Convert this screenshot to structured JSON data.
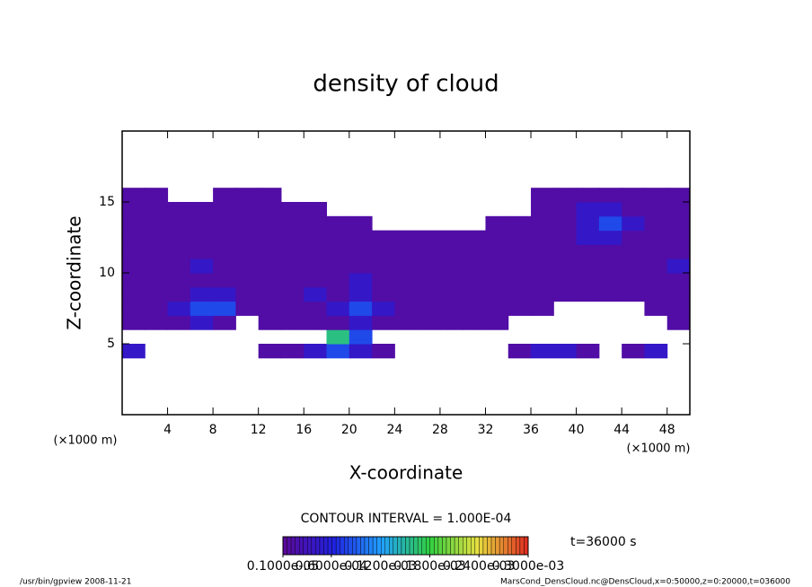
{
  "chart_data": {
    "type": "contour",
    "title": "density of cloud",
    "x_label": "X-coordinate",
    "y_label": "Z-coordinate",
    "x_unit": "(×1000 m)",
    "y_unit": "(×1000 m)",
    "xlim": [
      0,
      50
    ],
    "ylim": [
      0,
      20
    ],
    "xticks": [
      4,
      8,
      12,
      16,
      20,
      24,
      28,
      32,
      36,
      40,
      44,
      48
    ],
    "yticks": [
      5,
      10,
      15
    ],
    "x": [
      1,
      3,
      5,
      7,
      9,
      11,
      13,
      15,
      17,
      19,
      21,
      23,
      25,
      27,
      29,
      31,
      33,
      35,
      37,
      39,
      41,
      43,
      45,
      47,
      49
    ],
    "y": [
      4.5,
      5.5,
      6.5,
      7.5,
      8.5,
      9.5,
      10.5,
      11.5,
      12.5,
      13.5,
      14.5,
      15.5
    ],
    "z": [
      [
        4e-05,
        null,
        null,
        null,
        null,
        null,
        1e-05,
        1e-05,
        4e-05,
        8e-05,
        4e-05,
        1e-05,
        null,
        null,
        null,
        null,
        null,
        1e-05,
        4e-05,
        4e-05,
        1e-05,
        null,
        1e-05,
        4e-05,
        null
      ],
      [
        null,
        null,
        null,
        null,
        null,
        null,
        null,
        null,
        null,
        0.00016,
        8e-05,
        null,
        null,
        null,
        null,
        null,
        null,
        null,
        null,
        null,
        null,
        null,
        null,
        null,
        null
      ],
      [
        1e-05,
        1e-05,
        1e-05,
        4e-05,
        1e-05,
        null,
        1e-05,
        1e-05,
        1e-05,
        1e-05,
        4e-05,
        1e-05,
        1e-05,
        1e-05,
        1e-05,
        1e-05,
        1e-05,
        null,
        null,
        null,
        null,
        null,
        null,
        null,
        1e-05
      ],
      [
        1e-05,
        1e-05,
        4e-05,
        8e-05,
        8e-05,
        1e-05,
        1e-05,
        1e-05,
        1e-05,
        4e-05,
        8e-05,
        4e-05,
        1e-05,
        1e-05,
        1e-05,
        1e-05,
        1e-05,
        1e-05,
        1e-05,
        null,
        null,
        null,
        null,
        1e-05,
        1e-05
      ],
      [
        1e-05,
        1e-05,
        1e-05,
        4e-05,
        4e-05,
        1e-05,
        1e-05,
        1e-05,
        4e-05,
        1e-05,
        4e-05,
        1e-05,
        1e-05,
        1e-05,
        1e-05,
        1e-05,
        1e-05,
        1e-05,
        1e-05,
        1e-05,
        1e-05,
        1e-05,
        1e-05,
        1e-05,
        1e-05
      ],
      [
        1e-05,
        1e-05,
        1e-05,
        1e-05,
        1e-05,
        1e-05,
        1e-05,
        1e-05,
        1e-05,
        1e-05,
        4e-05,
        1e-05,
        1e-05,
        1e-05,
        1e-05,
        1e-05,
        1e-05,
        1e-05,
        1e-05,
        1e-05,
        1e-05,
        1e-05,
        1e-05,
        1e-05,
        1e-05
      ],
      [
        1e-05,
        1e-05,
        1e-05,
        4e-05,
        1e-05,
        1e-05,
        1e-05,
        1e-05,
        1e-05,
        1e-05,
        1e-05,
        1e-05,
        1e-05,
        1e-05,
        1e-05,
        1e-05,
        1e-05,
        1e-05,
        1e-05,
        1e-05,
        1e-05,
        1e-05,
        1e-05,
        1e-05,
        4e-05
      ],
      [
        1e-05,
        1e-05,
        1e-05,
        1e-05,
        1e-05,
        1e-05,
        1e-05,
        1e-05,
        1e-05,
        1e-05,
        1e-05,
        1e-05,
        1e-05,
        1e-05,
        1e-05,
        1e-05,
        1e-05,
        1e-05,
        1e-05,
        1e-05,
        1e-05,
        1e-05,
        1e-05,
        1e-05,
        1e-05
      ],
      [
        1e-05,
        1e-05,
        1e-05,
        1e-05,
        1e-05,
        1e-05,
        1e-05,
        1e-05,
        1e-05,
        1e-05,
        1e-05,
        1e-05,
        1e-05,
        1e-05,
        1e-05,
        1e-05,
        1e-05,
        1e-05,
        1e-05,
        1e-05,
        4e-05,
        4e-05,
        1e-05,
        1e-05,
        1e-05
      ],
      [
        1e-05,
        1e-05,
        1e-05,
        1e-05,
        1e-05,
        1e-05,
        1e-05,
        1e-05,
        1e-05,
        1e-05,
        1e-05,
        null,
        null,
        null,
        null,
        null,
        1e-05,
        1e-05,
        1e-05,
        1e-05,
        4e-05,
        8e-05,
        4e-05,
        1e-05,
        1e-05
      ],
      [
        1e-05,
        1e-05,
        1e-05,
        1e-05,
        1e-05,
        1e-05,
        1e-05,
        1e-05,
        1e-05,
        null,
        null,
        null,
        null,
        null,
        null,
        null,
        null,
        null,
        1e-05,
        1e-05,
        4e-05,
        4e-05,
        1e-05,
        1e-05,
        1e-05
      ],
      [
        1e-05,
        1e-05,
        null,
        null,
        1e-05,
        1e-05,
        1e-05,
        null,
        null,
        null,
        null,
        null,
        null,
        null,
        null,
        null,
        null,
        null,
        1e-05,
        1e-05,
        1e-05,
        1e-05,
        1e-05,
        1e-05,
        1e-05
      ]
    ],
    "clim": [
      1e-06,
      0.0003
    ],
    "colormap": [
      "#5a0a9a",
      "#2020e0",
      "#20a0ff",
      "#30d040",
      "#e8e040",
      "#e03020"
    ],
    "colorbar_ticks": [
      {
        "value": 1e-06,
        "label": "0.1000e-05"
      },
      {
        "value": 6e-05,
        "label": "0.6000e-04"
      },
      {
        "value": 0.00012,
        "label": "0.1200e-03"
      },
      {
        "value": 0.00018,
        "label": "0.1800e-03"
      },
      {
        "value": 0.00024,
        "label": "0.2400e-03"
      },
      {
        "value": 0.0003,
        "label": "0.3000e-03"
      }
    ],
    "contour_interval": "CONTOUR INTERVAL = 1.000E-04",
    "time_label": "t=36000 s",
    "footer_left": "/usr/bin/gpview   2008-11-21",
    "footer_right": "MarsCond_DensCloud.nc@DensCloud,x=0:50000,z=0:20000,t=036000"
  }
}
